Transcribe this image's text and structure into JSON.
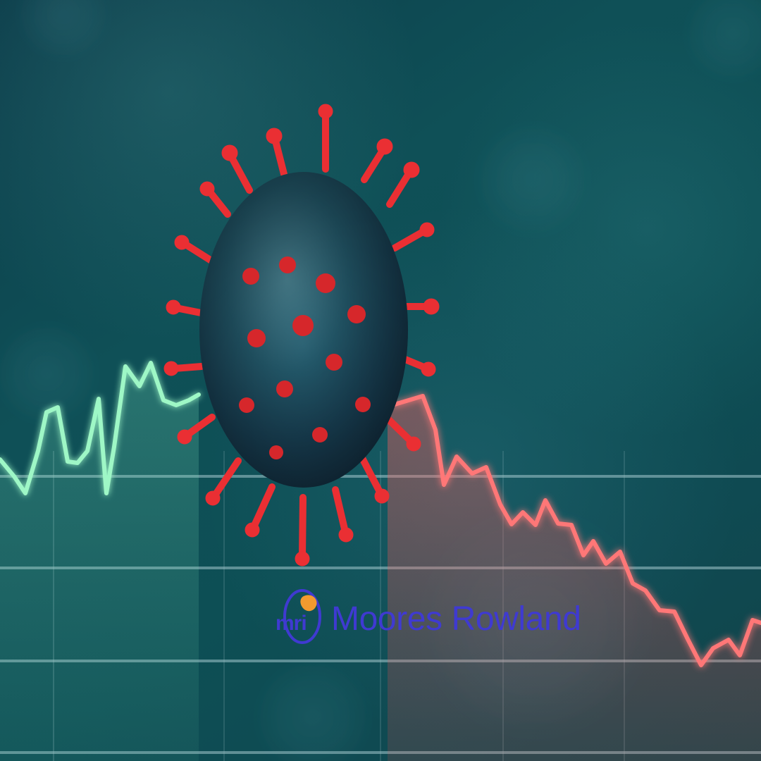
{
  "logo": {
    "mark_text": "mri",
    "name": "Moores Rowland",
    "primary_color": "#3f3ad1",
    "accent_color": "#f29a2f"
  },
  "colors": {
    "background_teal": "#0e4e56",
    "virus_body": "#163b4d",
    "virus_spike": "#e3232a",
    "line_up": "#8ef7be",
    "line_down": "#ff6b6b",
    "grid": "#9fc4ca"
  },
  "icons": {
    "virus": "virus-icon",
    "logo": "brand-logo-icon"
  }
}
